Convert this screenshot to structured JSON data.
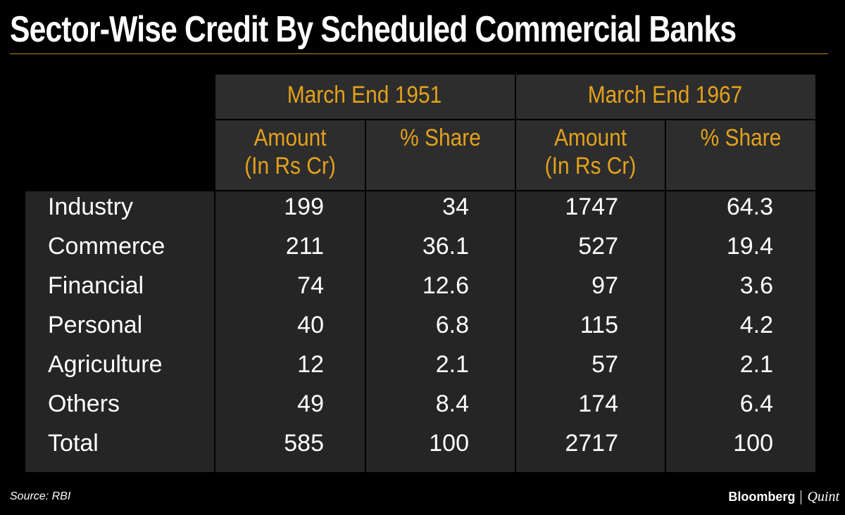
{
  "title": "Sector-Wise Credit By Scheduled Commercial Banks",
  "source": "Source: RBI",
  "brand": {
    "primary": "Bloomberg",
    "secondary": "Quint"
  },
  "colors": {
    "header_text": "#e3a11b",
    "background": "#000000",
    "row_bg": "#252525",
    "header_bg": "#2d2d2d"
  },
  "chart_data": {
    "type": "table",
    "title": "Sector-Wise Credit By Scheduled Commercial Banks",
    "groups": [
      "March End 1951",
      "March End 1967"
    ],
    "columns": [
      "Amount (In Rs Cr)",
      "% Share",
      "Amount (In Rs Cr)",
      "% Share"
    ],
    "column_lines": [
      [
        "Amount",
        "(In Rs Cr)"
      ],
      [
        "% Share"
      ],
      [
        "Amount",
        "(In Rs Cr)"
      ],
      [
        "% Share"
      ]
    ],
    "rows": [
      {
        "label": "Industry",
        "values": [
          "199",
          "34",
          "1747",
          "64.3"
        ]
      },
      {
        "label": "Commerce",
        "values": [
          "211",
          "36.1",
          "527",
          "19.4"
        ]
      },
      {
        "label": "Financial",
        "values": [
          "74",
          "12.6",
          "97",
          "3.6"
        ]
      },
      {
        "label": "Personal",
        "values": [
          "40",
          "6.8",
          "115",
          "4.2"
        ]
      },
      {
        "label": "Agriculture",
        "values": [
          "12",
          "2.1",
          "57",
          "2.1"
        ]
      },
      {
        "label": "Others",
        "values": [
          "49",
          "8.4",
          "174",
          "6.4"
        ]
      },
      {
        "label": "Total",
        "values": [
          "585",
          "100",
          "2717",
          "100"
        ]
      }
    ]
  }
}
